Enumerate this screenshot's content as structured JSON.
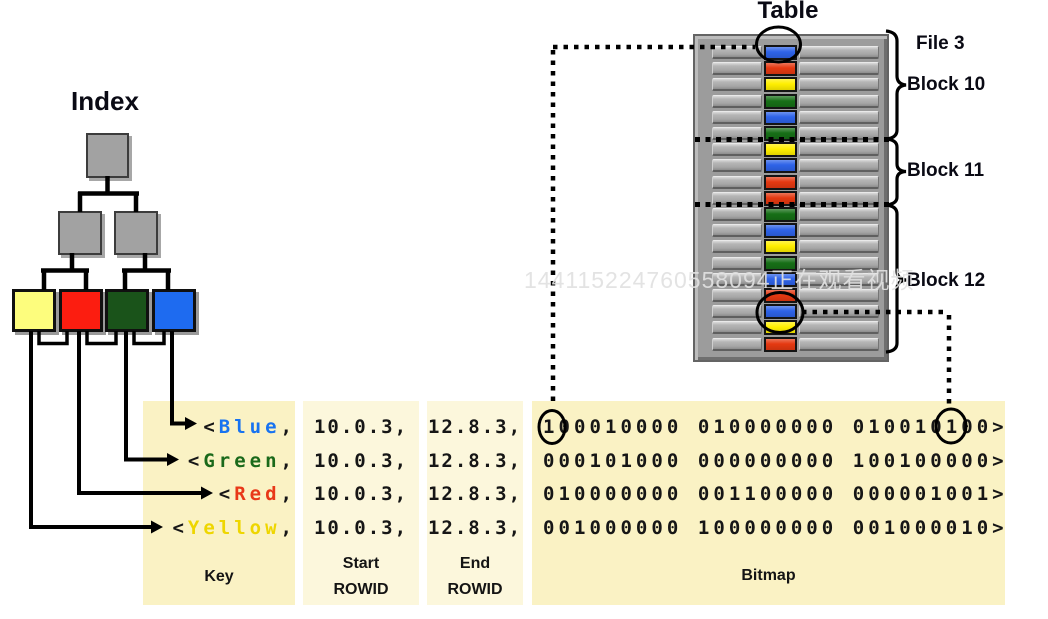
{
  "index": {
    "title": "Index"
  },
  "table": {
    "title": "Table",
    "file_label": "File 3",
    "block_labels": [
      "Block 10",
      "Block 11",
      "Block 12"
    ],
    "rows": [
      "blue",
      "red",
      "yellow",
      "green",
      "blue",
      "green",
      "yellow",
      "blue",
      "red",
      "red",
      "green",
      "blue",
      "yellow",
      "green",
      "blue",
      "red",
      "blue",
      "yellow",
      "red"
    ]
  },
  "colors": {
    "blue": "#2e63e8",
    "red": "#e53911",
    "yellow": "#ffef00",
    "green": "#176f17",
    "leaf_yellow": "#fdfd7d",
    "leaf_red": "#fc1d10",
    "leaf_green": "#1a531a",
    "leaf_blue": "#1e6bf0",
    "key_blue": "#1873f0",
    "key_green": "#1a691a",
    "key_red": "#e83818",
    "key_yellow": "#eed600"
  },
  "index_leaves": [
    "leaf_yellow",
    "leaf_red",
    "leaf_green",
    "leaf_blue"
  ],
  "bitmap_table": {
    "key_prefix": "<",
    "key_suffix": ",",
    "headers": {
      "key": "Key",
      "start_line1": "Start",
      "start_line2": "ROWID",
      "end_line1": "End",
      "end_line2": "ROWID",
      "bitmap": "Bitmap"
    },
    "rows": [
      {
        "key": "Blue",
        "color": "key_blue",
        "start": "10.0.3,",
        "end": "12.8.3,",
        "bitmap": "100010000 010000000 010010100>"
      },
      {
        "key": "Green",
        "color": "key_green",
        "start": "10.0.3,",
        "end": "12.8.3,",
        "bitmap": "000101000 000000000 100100000>"
      },
      {
        "key": "Red",
        "color": "key_red",
        "start": "10.0.3,",
        "end": "12.8.3,",
        "bitmap": "010000000 001100000 000001001>"
      },
      {
        "key": "Yellow",
        "color": "key_yellow",
        "start": "10.0.3,",
        "end": "12.8.3,",
        "bitmap": "001000000 100000000 001000010>"
      }
    ]
  },
  "watermark": "144115224760558094正在观看视频"
}
